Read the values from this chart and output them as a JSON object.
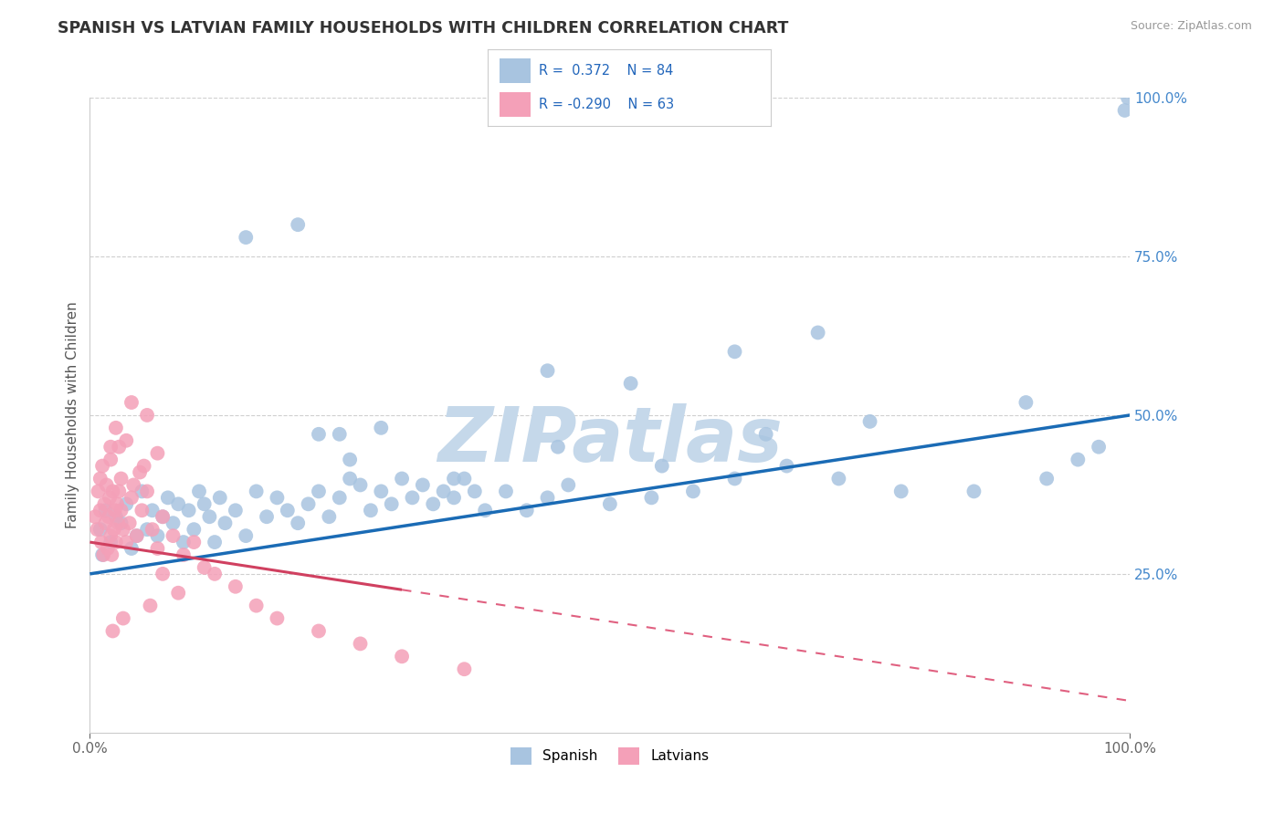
{
  "title": "SPANISH VS LATVIAN FAMILY HOUSEHOLDS WITH CHILDREN CORRELATION CHART",
  "source": "Source: ZipAtlas.com",
  "ylabel": "Family Households with Children",
  "xlim": [
    0,
    100
  ],
  "ylim": [
    0,
    100
  ],
  "ytick_positions": [
    0,
    25,
    50,
    75,
    100
  ],
  "ytick_labels": [
    "",
    "25.0%",
    "50.0%",
    "75.0%",
    "100.0%"
  ],
  "legend_r_spanish": "0.372",
  "legend_n_spanish": "84",
  "legend_r_latvian": "-0.290",
  "legend_n_latvian": "63",
  "spanish_color": "#a8c4e0",
  "latvian_color": "#f4a0b8",
  "spanish_line_color": "#1a6bb5",
  "latvian_line_color": "#e0406080",
  "latvian_line_solid_color": "#d04060",
  "watermark": "ZIPatlas",
  "watermark_color": "#c5d8ea",
  "background_color": "#ffffff",
  "grid_color": "#bbbbbb",
  "spanish_line_start_y": 25.0,
  "spanish_line_end_y": 50.0,
  "latvian_line_start_y": 30.0,
  "latvian_line_end_y": 5.0,
  "latvian_solid_end_x": 30.0,
  "spanish_scatter_x": [
    1.0,
    1.2,
    1.5,
    2.0,
    2.5,
    3.0,
    3.5,
    4.0,
    4.5,
    5.0,
    5.5,
    6.0,
    6.5,
    7.0,
    7.5,
    8.0,
    8.5,
    9.0,
    9.5,
    10.0,
    10.5,
    11.0,
    11.5,
    12.0,
    12.5,
    13.0,
    14.0,
    15.0,
    16.0,
    17.0,
    18.0,
    19.0,
    20.0,
    21.0,
    22.0,
    23.0,
    24.0,
    25.0,
    26.0,
    27.0,
    28.0,
    29.0,
    30.0,
    31.0,
    32.0,
    33.0,
    34.0,
    35.0,
    36.0,
    37.0,
    38.0,
    40.0,
    42.0,
    44.0,
    46.0,
    50.0,
    54.0,
    58.0,
    62.0,
    67.0,
    72.0,
    78.0,
    85.0,
    92.0,
    95.0,
    97.0,
    99.5,
    99.8,
    24.0,
    28.0,
    44.0,
    52.0,
    62.0,
    70.0,
    15.0,
    20.0,
    22.0,
    25.0,
    35.0,
    45.0,
    55.0,
    65.0,
    75.0,
    90.0
  ],
  "spanish_scatter_y": [
    32.0,
    28.0,
    35.0,
    30.0,
    34.0,
    33.0,
    36.0,
    29.0,
    31.0,
    38.0,
    32.0,
    35.0,
    31.0,
    34.0,
    37.0,
    33.0,
    36.0,
    30.0,
    35.0,
    32.0,
    38.0,
    36.0,
    34.0,
    30.0,
    37.0,
    33.0,
    35.0,
    31.0,
    38.0,
    34.0,
    37.0,
    35.0,
    33.0,
    36.0,
    38.0,
    34.0,
    37.0,
    40.0,
    39.0,
    35.0,
    38.0,
    36.0,
    40.0,
    37.0,
    39.0,
    36.0,
    38.0,
    37.0,
    40.0,
    38.0,
    35.0,
    38.0,
    35.0,
    37.0,
    39.0,
    36.0,
    37.0,
    38.0,
    40.0,
    42.0,
    40.0,
    38.0,
    38.0,
    40.0,
    43.0,
    45.0,
    98.0,
    100.0,
    47.0,
    48.0,
    57.0,
    55.0,
    60.0,
    63.0,
    78.0,
    80.0,
    47.0,
    43.0,
    40.0,
    45.0,
    42.0,
    47.0,
    49.0,
    52.0
  ],
  "latvian_scatter_x": [
    0.5,
    0.7,
    0.8,
    1.0,
    1.0,
    1.1,
    1.2,
    1.3,
    1.4,
    1.5,
    1.6,
    1.7,
    1.8,
    1.9,
    2.0,
    2.0,
    2.1,
    2.2,
    2.3,
    2.4,
    2.5,
    2.6,
    2.7,
    2.8,
    3.0,
    3.2,
    3.5,
    3.8,
    4.0,
    4.5,
    5.0,
    5.5,
    6.0,
    6.5,
    7.0,
    8.0,
    9.0,
    10.0,
    11.0,
    12.0,
    14.0,
    16.0,
    18.0,
    22.0,
    26.0,
    30.0,
    36.0,
    4.0,
    2.5,
    3.5,
    2.0,
    4.8,
    6.5,
    5.2,
    3.0,
    2.8,
    4.2,
    8.5,
    7.0,
    5.8,
    3.2,
    2.2,
    5.5
  ],
  "latvian_scatter_y": [
    34.0,
    32.0,
    38.0,
    35.0,
    40.0,
    30.0,
    42.0,
    28.0,
    36.0,
    33.0,
    39.0,
    29.0,
    34.0,
    37.0,
    31.0,
    45.0,
    28.0,
    38.0,
    32.0,
    35.0,
    30.0,
    36.0,
    33.0,
    38.0,
    35.0,
    32.0,
    30.0,
    33.0,
    37.0,
    31.0,
    35.0,
    38.0,
    32.0,
    29.0,
    34.0,
    31.0,
    28.0,
    30.0,
    26.0,
    25.0,
    23.0,
    20.0,
    18.0,
    16.0,
    14.0,
    12.0,
    10.0,
    52.0,
    48.0,
    46.0,
    43.0,
    41.0,
    44.0,
    42.0,
    40.0,
    45.0,
    39.0,
    22.0,
    25.0,
    20.0,
    18.0,
    16.0,
    50.0
  ],
  "title_fontsize": 12.5,
  "axis_label_fontsize": 11,
  "tick_fontsize": 11
}
